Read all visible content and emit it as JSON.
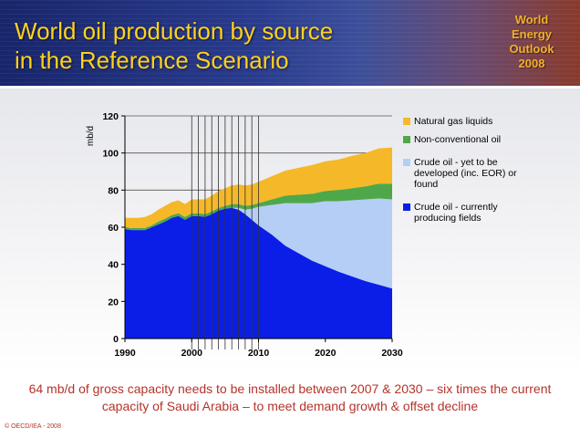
{
  "header": {
    "title_line1": "World oil production by source",
    "title_line2": "in the Reference Scenario",
    "logo_line1": "World",
    "logo_line2": "Energy",
    "logo_line3": "Outlook",
    "logo_line4": "2008"
  },
  "chart_data": {
    "type": "area",
    "stacked": true,
    "ylabel": "mb/d",
    "ylim": [
      0,
      120
    ],
    "yticks": [
      0,
      20,
      40,
      60,
      80,
      100,
      120
    ],
    "xlim": [
      1990,
      2030
    ],
    "xticks": [
      1990,
      2000,
      2010,
      2020,
      2030
    ],
    "grid": "horizontal",
    "legend_position": "right",
    "vertical_markers": [
      2000,
      2001,
      2002,
      2003,
      2004,
      2005,
      2006,
      2007,
      2008,
      2009,
      2010
    ],
    "x": [
      1990,
      1991,
      1992,
      1993,
      1994,
      1995,
      1996,
      1997,
      1998,
      1999,
      2000,
      2001,
      2002,
      2003,
      2004,
      2005,
      2006,
      2007,
      2008,
      2009,
      2010,
      2012,
      2014,
      2016,
      2018,
      2020,
      2022,
      2024,
      2026,
      2028,
      2030
    ],
    "series": [
      {
        "name": "Crude oil - currently producing fields",
        "color": "#0a1ee8",
        "values": [
          59,
          58.5,
          58.5,
          58.5,
          60,
          61.5,
          63,
          65,
          66,
          64,
          66,
          66,
          65.5,
          67,
          69,
          70,
          70.5,
          69.5,
          67,
          64,
          61,
          56,
          50,
          46,
          42,
          39,
          36,
          33.5,
          31,
          29,
          27
        ]
      },
      {
        "name": "Crude oil - yet to be developed (inc. EOR) or found",
        "color": "#b4cef5",
        "values": [
          0,
          0,
          0,
          0,
          0,
          0,
          0,
          0,
          0,
          0,
          0,
          0,
          0,
          0,
          0,
          0,
          0,
          1,
          2.5,
          6,
          10,
          16,
          23,
          27,
          31,
          35,
          38,
          41,
          44,
          46.5,
          48
        ]
      },
      {
        "name": "Non-conventional oil",
        "color": "#4ea84a",
        "values": [
          1,
          1,
          1,
          1,
          1,
          1.5,
          1.5,
          1.5,
          1.5,
          1.5,
          1.5,
          1.5,
          1.5,
          1.5,
          1.5,
          1.5,
          2,
          2,
          2,
          2,
          2,
          3,
          4,
          4.5,
          5,
          5.5,
          6,
          6.5,
          7,
          8,
          8.5
        ]
      },
      {
        "name": "Natural gas liquids",
        "color": "#f5b828",
        "values": [
          5,
          5.5,
          5.5,
          6,
          6,
          6.5,
          7,
          7,
          7,
          7,
          7.5,
          7.5,
          8,
          8.5,
          9,
          9.5,
          10,
          10.5,
          11,
          11,
          11.5,
          12.5,
          13.5,
          14.5,
          15.5,
          16,
          16.5,
          17.5,
          18,
          19,
          19.5
        ]
      }
    ],
    "legend_order": [
      "Natural gas liquids",
      "Non-conventional oil",
      "Crude oil - yet to be developed (inc. EOR) or found",
      "Crude oil - currently producing fields"
    ]
  },
  "legend": {
    "ngl": "Natural gas liquids",
    "nonconv": "Non-conventional oil",
    "ytbd": "Crude oil - yet to be developed (inc. EOR) or found",
    "current": "Crude oil - currently producing fields"
  },
  "footer": {
    "line1": "64 mb/d of gross capacity needs to be installed between 2007 & 2030 – six times the current",
    "line2": "capacity of Saudi Arabia – to meet demand growth & offset decline",
    "copyright": "© OECD/IEA - 2008"
  }
}
